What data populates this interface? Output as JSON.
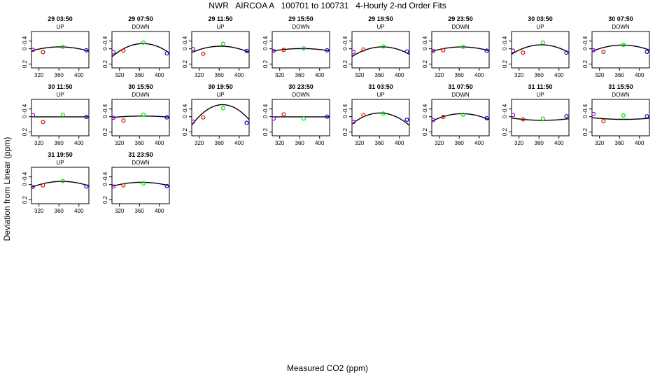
{
  "header": {
    "title": "NWR   AIRCOA A   100701 to 100731   4-Hourly 2-nd Order Fits",
    "xlabel": "Measured CO2 (ppm)",
    "ylabel": "Deviation from Linear (ppm)"
  },
  "colors": {
    "low_std": "#9900cc",
    "mid_low_std": "#dd0000",
    "mid_high_std": "#00dd00",
    "high_std": "#0000dd",
    "curve": "#000000"
  },
  "chart_data": {
    "type": "scatter",
    "description_axes": {
      "xlim": [
        305,
        420
      ],
      "ylim": [
        -0.5,
        0.45
      ],
      "xticks": [
        320,
        360,
        400
      ],
      "yticks": [
        -0.4,
        0.0,
        0.2
      ]
    },
    "ytick_labels": [
      "0.2",
      "0",
      "-0.4"
    ],
    "xtick_labels": [
      "320",
      "360",
      "400"
    ],
    "standard_x": [
      308,
      328,
      368,
      415
    ],
    "panels": [
      {
        "title": "29 03:50",
        "direction": "UP",
        "y": [
          -0.03,
          -0.09,
          0.05,
          -0.04
        ],
        "curve": [
          -3.25e-05,
          0.0235,
          -4.2
        ]
      },
      {
        "title": "29 07:50",
        "direction": "DOWN",
        "y": [
          -0.09,
          -0.05,
          0.16,
          -0.12
        ],
        "curve": [
          -8.85e-05,
          0.065,
          -11.8
        ]
      },
      {
        "title": "29 11:50",
        "direction": "UP",
        "y": [
          -0.01,
          -0.13,
          0.13,
          -0.06
        ],
        "curve": [
          -4.92e-05,
          0.0357,
          -6.41
        ]
      },
      {
        "title": "29 15:50",
        "direction": "DOWN",
        "y": [
          -0.06,
          -0.03,
          0.01,
          -0.04
        ],
        "curve": [
          -1.95e-05,
          0.0142,
          -2.58
        ]
      },
      {
        "title": "29 19:50",
        "direction": "UP",
        "y": [
          -0.09,
          -0.02,
          0.06,
          -0.07
        ],
        "curve": [
          -6.73e-05,
          0.0493,
          -8.98
        ]
      },
      {
        "title": "29 23:50",
        "direction": "DOWN",
        "y": [
          -0.06,
          -0.04,
          0.05,
          -0.05
        ],
        "curve": [
          -3.29e-05,
          0.024,
          -4.33
        ]
      },
      {
        "title": "30 03:50",
        "direction": "UP",
        "y": [
          -0.05,
          -0.1,
          0.16,
          -0.1
        ],
        "curve": [
          -6.75e-05,
          0.0493,
          -8.9
        ]
      },
      {
        "title": "30 07:50",
        "direction": "DOWN",
        "y": [
          -0.04,
          -0.08,
          0.1,
          -0.08
        ],
        "curve": [
          -4.36e-05,
          0.0319,
          -5.74
        ]
      },
      {
        "title": "30 11:50",
        "direction": "UP",
        "y": [
          0.04,
          -0.14,
          0.05,
          -0.01
        ],
        "curve": [
          0,
          0,
          -0.005
        ]
      },
      {
        "title": "30 15:50",
        "direction": "DOWN",
        "y": [
          -0.03,
          -0.1,
          0.05,
          -0.02
        ],
        "curve": [
          -1.01e-05,
          0.0074,
          -1.34
        ]
      },
      {
        "title": "30 19:50",
        "direction": "UP",
        "y": [
          -0.13,
          -0.02,
          0.22,
          -0.16
        ],
        "curve": [
          -0.000139,
          0.102,
          -18.4
        ]
      },
      {
        "title": "30 23:50",
        "direction": "DOWN",
        "y": [
          -0.05,
          0.06,
          -0.05,
          0.0
        ],
        "curve": [
          0,
          0,
          -0.005
        ]
      },
      {
        "title": "31 03:50",
        "direction": "UP",
        "y": [
          -0.14,
          0.04,
          0.08,
          -0.08
        ],
        "curve": [
          -9.16e-05,
          0.0661,
          -11.83
        ]
      },
      {
        "title": "31 07:50",
        "direction": "DOWN",
        "y": [
          -0.09,
          -0.01,
          0.05,
          -0.04
        ],
        "curve": [
          -5.36e-05,
          0.0392,
          -7.09
        ]
      },
      {
        "title": "31 11:50",
        "direction": "UP",
        "y": [
          0.04,
          -0.07,
          -0.05,
          0.01
        ],
        "curve": [
          1.55e-05,
          -0.0114,
          2.0
        ]
      },
      {
        "title": "31 15:50",
        "direction": "DOWN",
        "y": [
          0.07,
          -0.12,
          0.03,
          0.01
        ],
        "curve": [
          1.1e-05,
          -0.0081,
          1.42
        ]
      },
      {
        "title": "31 19:50",
        "direction": "UP",
        "y": [
          -0.06,
          -0.02,
          0.09,
          -0.05
        ],
        "curve": [
          -4.04e-05,
          0.0296,
          -5.34
        ]
      },
      {
        "title": "31 23:50",
        "direction": "DOWN",
        "y": [
          -0.05,
          -0.02,
          0.03,
          -0.04
        ],
        "curve": [
          -2.88e-05,
          0.021,
          -3.77
        ]
      }
    ]
  }
}
